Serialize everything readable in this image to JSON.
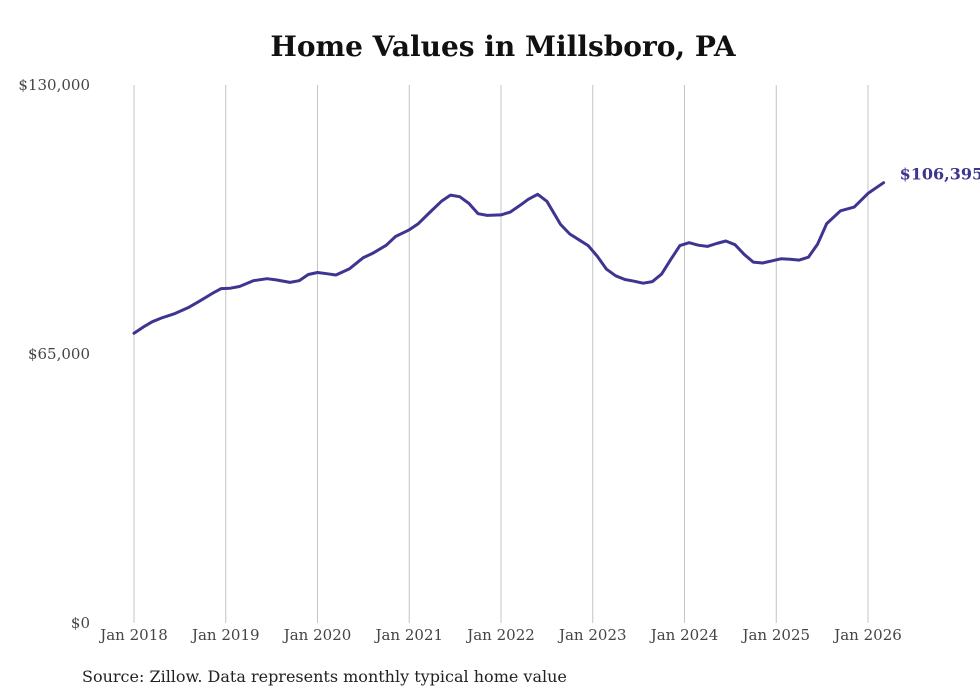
{
  "chart_data": {
    "type": "line",
    "title": "Home Values in Millsboro, PA",
    "source": "Source: Zillow. Data represents monthly typical home value",
    "xlabel": "",
    "ylabel": "",
    "ylim": [
      0,
      130000
    ],
    "yticks": [
      {
        "value": 130000,
        "label": "$130,000"
      },
      {
        "value": 65000,
        "label": "$65,000"
      },
      {
        "value": 0,
        "label": "$0"
      }
    ],
    "xlim": [
      2018.0,
      2026.25
    ],
    "xticks": [
      {
        "value": 2018,
        "label": "Jan 2018"
      },
      {
        "value": 2019,
        "label": "Jan 2019"
      },
      {
        "value": 2020,
        "label": "Jan 2020"
      },
      {
        "value": 2021,
        "label": "Jan 2021"
      },
      {
        "value": 2022,
        "label": "Jan 2022"
      },
      {
        "value": 2023,
        "label": "Jan 2023"
      },
      {
        "value": 2024,
        "label": "Jan 2024"
      },
      {
        "value": 2025,
        "label": "Jan 2025"
      },
      {
        "value": 2026,
        "label": "Jan 2026"
      }
    ],
    "grid": "vertical",
    "line_color": "#3d3590",
    "end_label": "$106,395",
    "series": [
      {
        "name": "Home value",
        "x": [
          2018.0,
          2018.1,
          2018.2,
          2018.3,
          2018.45,
          2018.6,
          2018.7,
          2018.85,
          2018.95,
          2019.05,
          2019.15,
          2019.3,
          2019.45,
          2019.55,
          2019.7,
          2019.8,
          2019.9,
          2020.0,
          2020.1,
          2020.2,
          2020.35,
          2020.5,
          2020.6,
          2020.75,
          2020.85,
          2021.0,
          2021.1,
          2021.2,
          2021.35,
          2021.45,
          2021.55,
          2021.65,
          2021.75,
          2021.85,
          2022.0,
          2022.1,
          2022.2,
          2022.3,
          2022.4,
          2022.5,
          2022.65,
          2022.75,
          2022.85,
          2022.95,
          2023.05,
          2023.15,
          2023.25,
          2023.35,
          2023.45,
          2023.55,
          2023.65,
          2023.75,
          2023.85,
          2023.95,
          2024.05,
          2024.15,
          2024.25,
          2024.35,
          2024.45,
          2024.55,
          2024.65,
          2024.75,
          2024.85,
          2024.95,
          2025.05,
          2025.15,
          2025.25,
          2025.35,
          2025.45,
          2025.55,
          2025.7,
          2025.85,
          2026.0,
          2026.17
        ],
        "values": [
          70000,
          71500,
          72800,
          73700,
          74800,
          76300,
          77600,
          79600,
          80800,
          80900,
          81300,
          82700,
          83200,
          82900,
          82300,
          82700,
          84200,
          84700,
          84400,
          84100,
          85600,
          88300,
          89300,
          91300,
          93400,
          95000,
          96500,
          98700,
          101900,
          103400,
          103000,
          101400,
          98900,
          98500,
          98600,
          99300,
          100800,
          102400,
          103600,
          101900,
          96300,
          94000,
          92600,
          91200,
          88600,
          85500,
          83900,
          83000,
          82600,
          82100,
          82500,
          84300,
          87800,
          91200,
          91900,
          91300,
          91000,
          91700,
          92300,
          91400,
          89100,
          87200,
          87000,
          87500,
          88000,
          87900,
          87700,
          88400,
          91500,
          96500,
          99600,
          100500,
          103800,
          106395
        ]
      }
    ]
  }
}
